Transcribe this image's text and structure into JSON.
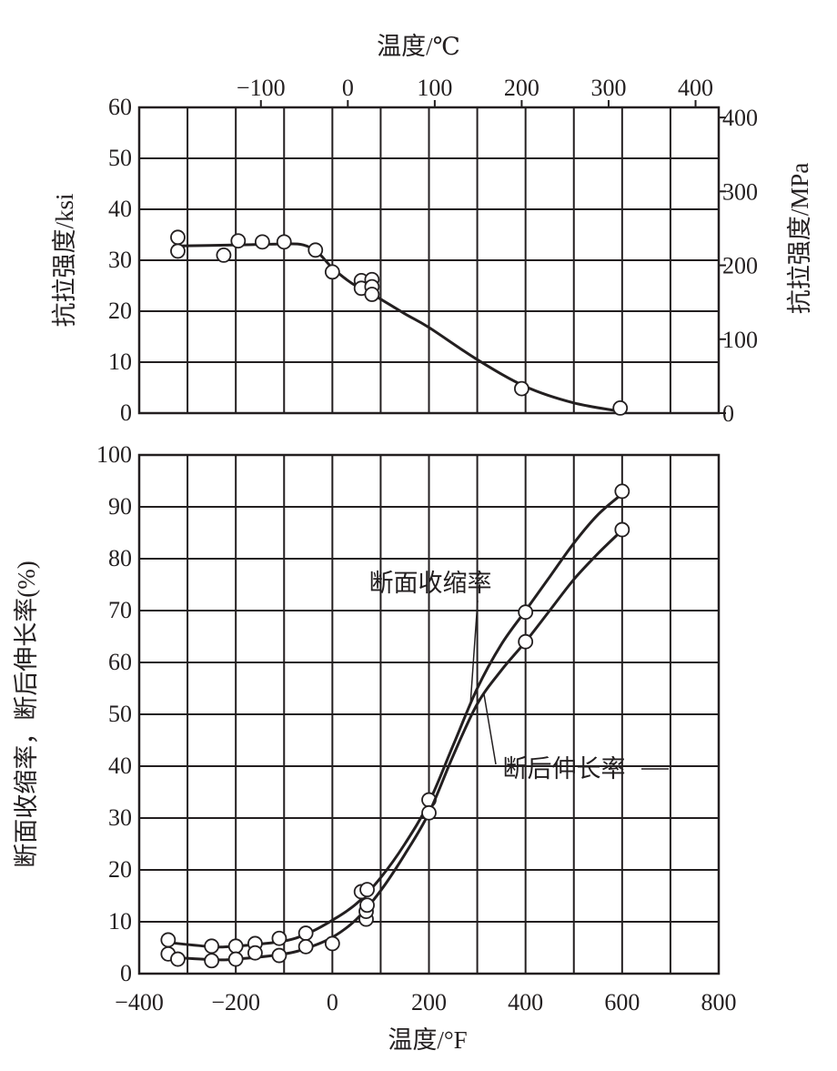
{
  "chart_data": [
    {
      "type": "line",
      "title": "",
      "xlabel_top": "温度/℃",
      "ylabel": "抗拉强度/ksi",
      "ylabel_right": "抗拉强度/MPa",
      "xlim": [
        -400,
        800
      ],
      "ylim": [
        0,
        60
      ],
      "ylim_right": [
        0,
        413.7
      ],
      "grid": true,
      "x_ticks_top": [
        -100,
        0,
        100,
        200,
        300,
        400
      ],
      "y_ticks": [
        0,
        10,
        20,
        30,
        40,
        50,
        60
      ],
      "y_ticks_right": [
        0,
        100,
        200,
        300,
        400
      ],
      "series": [
        {
          "name": "抗拉强度",
          "points": [
            [
              -320,
              34.5
            ],
            [
              -320,
              31.8
            ],
            [
              -225,
              31
            ],
            [
              -195,
              33.8
            ],
            [
              -145,
              33.6
            ],
            [
              -100,
              33.6
            ],
            [
              -35,
              32
            ],
            [
              0,
              27.7
            ],
            [
              60,
              26
            ],
            [
              60,
              24.5
            ],
            [
              82,
              26.2
            ],
            [
              82,
              24.8
            ],
            [
              82,
              23.3
            ],
            [
              392,
              4.8
            ],
            [
              596,
              1
            ]
          ],
          "curve": [
            [
              -330,
              32.8
            ],
            [
              -200,
              33
            ],
            [
              -100,
              33.2
            ],
            [
              -60,
              33
            ],
            [
              -30,
              31.5
            ],
            [
              0,
              28.5
            ],
            [
              40,
              25.5
            ],
            [
              80,
              23.5
            ],
            [
              150,
              19.5
            ],
            [
              200,
              16.8
            ],
            [
              300,
              10.5
            ],
            [
              400,
              5.2
            ],
            [
              500,
              2
            ],
            [
              600,
              0.3
            ]
          ]
        }
      ]
    },
    {
      "type": "line",
      "title": "",
      "xlabel": "温度/°F",
      "ylabel": "断面收缩率，断后伸长率(%)",
      "xlim": [
        -400,
        800
      ],
      "ylim": [
        0,
        100
      ],
      "grid": true,
      "x_ticks": [
        -400,
        -200,
        0,
        200,
        400,
        600,
        800
      ],
      "y_ticks": [
        0,
        10,
        20,
        30,
        40,
        50,
        60,
        70,
        80,
        90,
        100
      ],
      "annotations": [
        "断面收缩率",
        "断后伸长率"
      ],
      "series": [
        {
          "name": "断面收缩率",
          "points": [
            [
              -340,
              6.5
            ],
            [
              -250,
              5.3
            ],
            [
              -200,
              5.3
            ],
            [
              -160,
              5.8
            ],
            [
              -110,
              6.8
            ],
            [
              -55,
              7.8
            ],
            [
              60,
              15.8
            ],
            [
              72,
              16.2
            ],
            [
              200,
              33.5
            ],
            [
              400,
              69.7
            ],
            [
              600,
              93
            ]
          ],
          "curve": [
            [
              -340,
              6
            ],
            [
              -250,
              5.2
            ],
            [
              -200,
              5.3
            ],
            [
              -100,
              6.3
            ],
            [
              -50,
              7.8
            ],
            [
              0,
              10.3
            ],
            [
              50,
              13.5
            ],
            [
              100,
              18.5
            ],
            [
              150,
              25
            ],
            [
              200,
              33
            ],
            [
              250,
              44
            ],
            [
              300,
              55
            ],
            [
              350,
              63.5
            ],
            [
              400,
              70
            ],
            [
              450,
              76.5
            ],
            [
              500,
              83
            ],
            [
              550,
              88.5
            ],
            [
              600,
              92.5
            ]
          ]
        },
        {
          "name": "断后伸长率",
          "points": [
            [
              -340,
              3.8
            ],
            [
              -320,
              2.8
            ],
            [
              -250,
              2.5
            ],
            [
              -200,
              2.8
            ],
            [
              -160,
              4
            ],
            [
              -110,
              3.5
            ],
            [
              -55,
              5.2
            ],
            [
              0,
              5.8
            ],
            [
              70,
              10.5
            ],
            [
              70,
              12
            ],
            [
              72,
              13.2
            ],
            [
              200,
              31
            ],
            [
              400,
              64
            ],
            [
              600,
              85.6
            ]
          ],
          "curve": [
            [
              -340,
              3.2
            ],
            [
              -250,
              2.7
            ],
            [
              -200,
              2.8
            ],
            [
              -100,
              3.8
            ],
            [
              -50,
              5
            ],
            [
              0,
              7
            ],
            [
              50,
              10.5
            ],
            [
              100,
              16
            ],
            [
              150,
              23
            ],
            [
              200,
              31
            ],
            [
              250,
              42
            ],
            [
              300,
              52
            ],
            [
              350,
              58.5
            ],
            [
              400,
              64
            ],
            [
              450,
              70
            ],
            [
              500,
              76
            ],
            [
              550,
              81
            ],
            [
              600,
              85.5
            ]
          ]
        }
      ]
    }
  ]
}
